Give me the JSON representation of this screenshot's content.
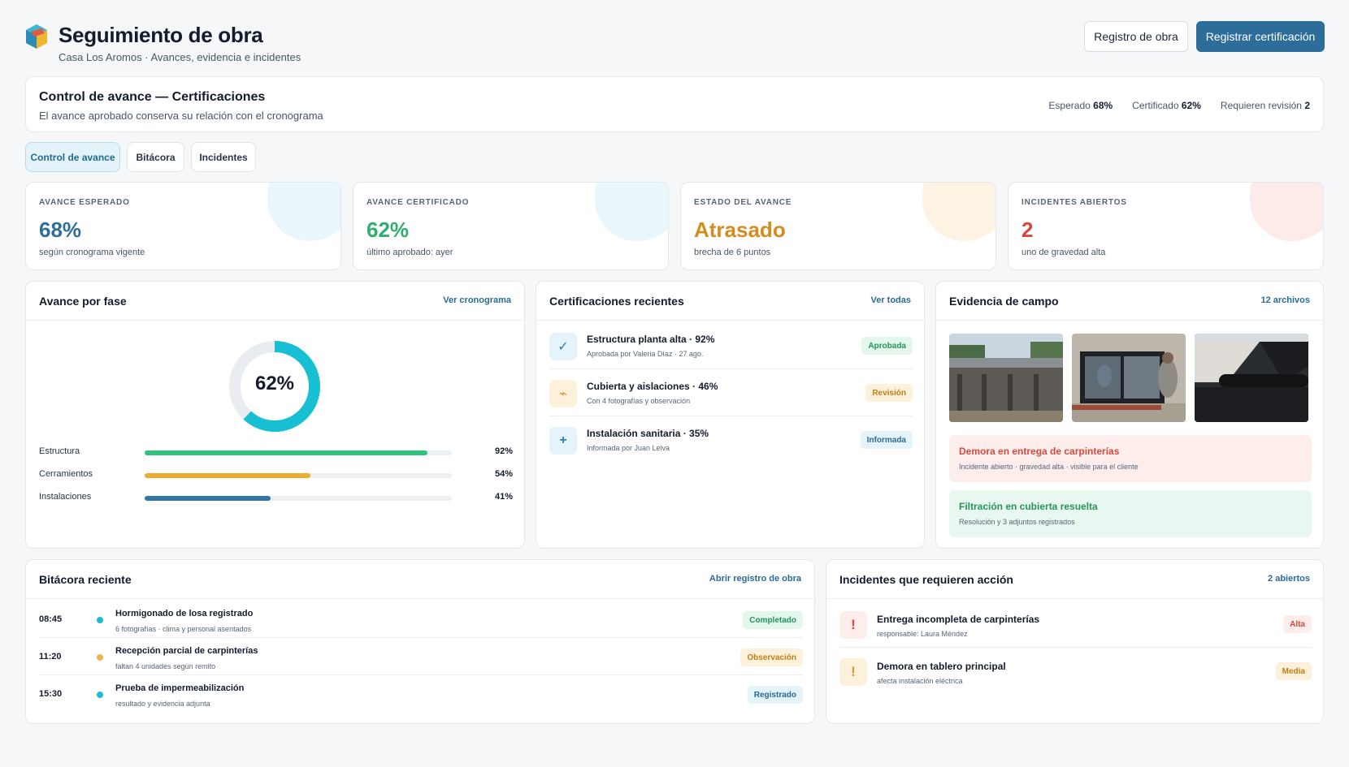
{
  "header": {
    "title": "Seguimiento de obra",
    "subtitle": "Casa Los Aromos · Avances, evidencia e incidentes",
    "btn_registro": "Registro de obra",
    "btn_registrar": "Registrar certificación"
  },
  "control": {
    "title": "Control de avance — Certificaciones",
    "subtitle": "El avance aprobado conserva su relación con el cronograma",
    "stats": [
      {
        "label": "Esperado",
        "value": "68%"
      },
      {
        "label": "Certificado",
        "value": "62%"
      },
      {
        "label": "Requieren revisión",
        "value": "2"
      }
    ]
  },
  "tabs": [
    "Control de avance",
    "Bitácora",
    "Incidentes"
  ],
  "kpis": [
    {
      "label": "AVANCE ESPERADO",
      "value": "68%",
      "note": "según cronograma vigente",
      "color": "#2f6f97",
      "blob": "#e9f6fb"
    },
    {
      "label": "AVANCE CERTIFICADO",
      "value": "62%",
      "note": "último aprobado: ayer",
      "color": "#2fae6d",
      "blob": "#e9f6fb"
    },
    {
      "label": "ESTADO DEL AVANCE",
      "value": "Atrasado",
      "note": "brecha de 6 puntos",
      "color": "#d38d1e",
      "blob": "#fdf3e3"
    },
    {
      "label": "INCIDENTES ABIERTOS",
      "value": "2",
      "note": "uno de gravedad alta",
      "color": "#d8453e",
      "blob": "#fcebe9"
    }
  ],
  "fase": {
    "title": "Avance por fase",
    "link": "Ver cronograma",
    "donut_value": "62%",
    "donut_fraction": 0.62,
    "items": [
      {
        "label": "Estructura",
        "value": 92,
        "pct": "92%",
        "color": "#2ec27a"
      },
      {
        "label": "Cerramientos",
        "value": 54,
        "pct": "54%",
        "color": "#f0ad2d"
      },
      {
        "label": "Instalaciones",
        "value": 41,
        "pct": "41%",
        "color": "#2f77a6"
      }
    ]
  },
  "certs": {
    "title": "Certificaciones recientes",
    "link": "Ver todas",
    "items": [
      {
        "icon": "✓",
        "title": "Estructura planta alta · 92%",
        "sub": "Aprobada por Valeria Díaz · 27 ago.",
        "badge": "Aprobada"
      },
      {
        "icon": "⌁",
        "title": "Cubierta y aislaciones · 46%",
        "sub": "Con 4 fotografías y observación",
        "badge": "Revisión"
      },
      {
        "icon": "+",
        "title": "Instalación sanitaria · 35%",
        "sub": "Informada por Juan Leiva",
        "badge": "Informada"
      }
    ]
  },
  "evidencia": {
    "title": "Evidencia de campo",
    "link": "12 archivos",
    "alerts": [
      {
        "title": "Demora en entrega de carpinterías",
        "sub": "Incidente abierto · gravedad alta · visible para el cliente"
      },
      {
        "title": "Filtración en cubierta resuelta",
        "sub": "Resolución y 3 adjuntos registrados"
      }
    ]
  },
  "bitacora": {
    "title": "Bitácora reciente",
    "link": "Abrir registro de obra",
    "items": [
      {
        "time": "08:45",
        "title": "Hormigonado de losa registrado",
        "sub": "6 fotografías · clima y personal asentados",
        "badge": "Completado"
      },
      {
        "time": "11:20",
        "title": "Recepción parcial de carpinterías",
        "sub": "faltan 4 unidades según remito",
        "badge": "Observación"
      },
      {
        "time": "15:30",
        "title": "Prueba de impermeabilización",
        "sub": "resultado y evidencia adjunta",
        "badge": "Registrado"
      }
    ]
  },
  "incidentes": {
    "title": "Incidentes que requieren acción",
    "link": "2 abiertos",
    "items": [
      {
        "icon": "!",
        "title": "Entrega incompleta de carpinterías",
        "sub": "responsable: Laura Méndez",
        "badge": "Alta"
      },
      {
        "icon": "!",
        "title": "Demora en tablero principal",
        "sub": "afecta instalación eléctrica",
        "badge": "Media"
      }
    ]
  }
}
